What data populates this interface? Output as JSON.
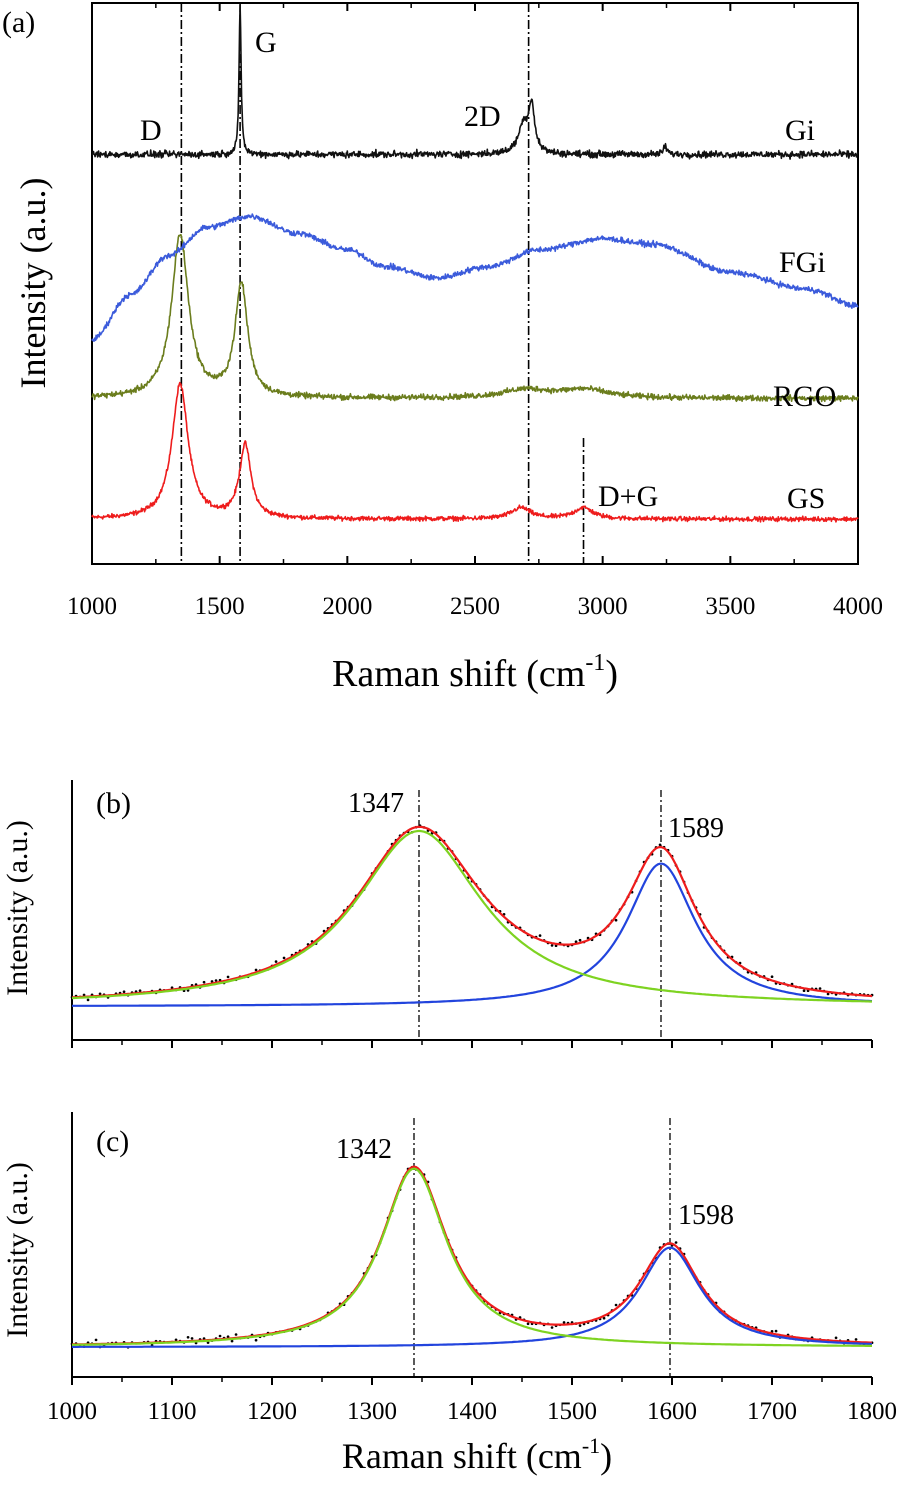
{
  "colors": {
    "axis": "#000000",
    "gi": "#111111",
    "fgi": "#3b5bdb",
    "rgo": "#6b7d1d",
    "gs": "#ee1c1c",
    "dots": "#000000",
    "fit_total": "#ee1c1c",
    "fit_d": "#7ed321",
    "fit_g": "#2244dd"
  },
  "chart_data": [
    {
      "type": "line",
      "panel_label": "(a)",
      "xlabel": "Raman shift (cm",
      "xlabel_sup": "-1",
      "xlabel_tail": ")",
      "ylabel": "Intensity (a.u.)",
      "xlim": [
        1000,
        4000
      ],
      "xticks": [
        1000,
        1500,
        2000,
        2500,
        3000,
        3500,
        4000
      ],
      "xtick_labels": [
        "1000",
        "1500",
        "2000",
        "2500",
        "3000",
        "3500",
        "4000"
      ],
      "y_units": "arbitrary, stacked offsets",
      "ylim": [
        0,
        100
      ],
      "reference_lines": [
        {
          "x": 1350,
          "label": "D"
        },
        {
          "x": 1580,
          "label": "G"
        },
        {
          "x": 2710,
          "label": "2D"
        },
        {
          "x": 2925,
          "label": "D+G"
        }
      ],
      "series": [
        {
          "name": "Gi",
          "color_key": "gi",
          "baseline": 73,
          "noise": 0.6,
          "peaks": [
            {
              "x": 1580,
              "height": 26,
              "width": 5
            },
            {
              "x": 2690,
              "height": 5,
              "width": 25
            },
            {
              "x": 2722,
              "height": 8,
              "width": 14
            },
            {
              "x": 3245,
              "height": 1.5,
              "width": 8
            }
          ]
        },
        {
          "name": "FGi",
          "color_key": "fgi",
          "baseline": 40,
          "noise": 0.5,
          "broad": [
            {
              "x": 1000,
              "y": 40
            },
            {
              "x": 1150,
              "y": 48
            },
            {
              "x": 1300,
              "y": 55
            },
            {
              "x": 1450,
              "y": 60
            },
            {
              "x": 1620,
              "y": 62
            },
            {
              "x": 1800,
              "y": 59
            },
            {
              "x": 2000,
              "y": 56
            },
            {
              "x": 2150,
              "y": 53
            },
            {
              "x": 2350,
              "y": 51
            },
            {
              "x": 2550,
              "y": 53
            },
            {
              "x": 2750,
              "y": 56
            },
            {
              "x": 3000,
              "y": 58
            },
            {
              "x": 3200,
              "y": 57
            },
            {
              "x": 3500,
              "y": 52
            },
            {
              "x": 3800,
              "y": 49
            },
            {
              "x": 4000,
              "y": 46
            }
          ]
        },
        {
          "name": "RGO",
          "color_key": "rgo",
          "baseline": 29.5,
          "noise": 0.5,
          "peaks": [
            {
              "x": 1345,
              "height": 29,
              "width": 40
            },
            {
              "x": 1585,
              "height": 20,
              "width": 30
            },
            {
              "x": 2700,
              "height": 1.5,
              "width": 110
            },
            {
              "x": 2930,
              "height": 1.5,
              "width": 110
            }
          ]
        },
        {
          "name": "GS",
          "color_key": "gs",
          "baseline": 8,
          "noise": 0.4,
          "peaks": [
            {
              "x": 1345,
              "height": 24,
              "width": 38
            },
            {
              "x": 1600,
              "height": 13,
              "width": 27
            },
            {
              "x": 2680,
              "height": 2,
              "width": 45
            },
            {
              "x": 2925,
              "height": 2,
              "width": 45
            }
          ]
        }
      ]
    },
    {
      "type": "line",
      "panel_label": "(b)",
      "xlabel": "",
      "ylabel": "Intensity (a.u.)",
      "xlim": [
        1000,
        1800
      ],
      "xticks": [
        1000,
        1100,
        1200,
        1300,
        1400,
        1500,
        1600,
        1700,
        1800
      ],
      "show_tick_labels": false,
      "ylim": [
        0,
        100
      ],
      "peak_annotations": [
        {
          "x": 1347,
          "label": "1347"
        },
        {
          "x": 1589,
          "label": "1589"
        }
      ],
      "components": {
        "baseline": 3,
        "D": {
          "center": 1347,
          "hwhm": 78,
          "height": 97
        },
        "G": {
          "center": 1589,
          "hwhm": 42,
          "height": 79
        }
      },
      "series": [
        {
          "name": "measured",
          "style": "dotted",
          "color_key": "dots"
        },
        {
          "name": "fit total",
          "color_key": "fit_total"
        },
        {
          "name": "D fit",
          "color_key": "fit_d"
        },
        {
          "name": "G fit",
          "color_key": "fit_g"
        }
      ]
    },
    {
      "type": "line",
      "panel_label": "(c)",
      "xlabel": "Raman shift (cm",
      "xlabel_sup": "-1",
      "xlabel_tail": ")",
      "ylabel": "Intensity (a.u.)",
      "xlim": [
        1000,
        1800
      ],
      "xticks": [
        1000,
        1100,
        1200,
        1300,
        1400,
        1500,
        1600,
        1700,
        1800
      ],
      "xtick_labels": [
        "1000",
        "1100",
        "1200",
        "1300",
        "1400",
        "1500",
        "1600",
        "1700",
        "1800"
      ],
      "ylim": [
        0,
        100
      ],
      "peak_annotations": [
        {
          "x": 1342,
          "label": "1342"
        },
        {
          "x": 1598,
          "label": "1598"
        }
      ],
      "components": {
        "baseline": 2,
        "D": {
          "center": 1342,
          "hwhm": 40,
          "height": 95
        },
        "G": {
          "center": 1598,
          "hwhm": 37,
          "height": 53
        }
      },
      "series": [
        {
          "name": "measured",
          "style": "dotted",
          "color_key": "dots"
        },
        {
          "name": "fit total",
          "color_key": "fit_total"
        },
        {
          "name": "D fit",
          "color_key": "fit_d"
        },
        {
          "name": "G fit",
          "color_key": "fit_g"
        }
      ]
    }
  ]
}
